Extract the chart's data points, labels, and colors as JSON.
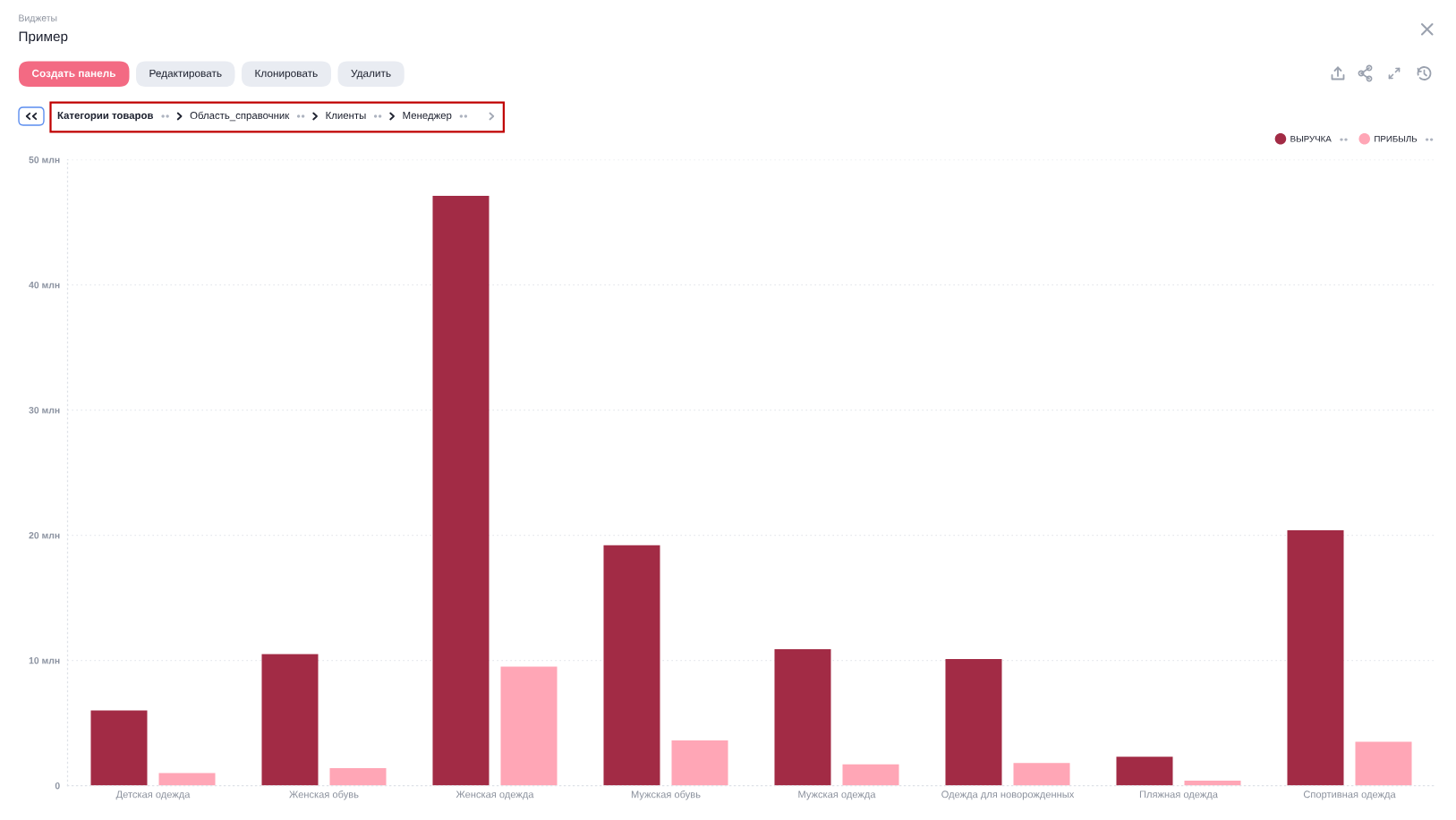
{
  "chart_data": {
    "type": "bar",
    "title": "Пример",
    "subtitle": "Виджеты",
    "categories": [
      "Детская одежда",
      "Женская обувь",
      "Женская одежда",
      "Мужская обувь",
      "Мужская одежда",
      "Одежда для новорожденных",
      "Пляжная одежда",
      "Спортивная одежда"
    ],
    "series": [
      {
        "name": "ВЫРУЧКА",
        "color": "#a22b45",
        "values": [
          6.0,
          10.5,
          47.1,
          19.2,
          10.9,
          10.1,
          2.3,
          20.4
        ]
      },
      {
        "name": "ПРИБЫЛЬ",
        "color": "#ffa6b6",
        "values": [
          1.0,
          1.4,
          9.5,
          3.6,
          1.7,
          1.8,
          0.4,
          3.5
        ]
      }
    ],
    "ylim": [
      0,
      50
    ],
    "yticks": [
      0,
      {
        "value": 10,
        "label": "10 млн"
      },
      {
        "value": 20,
        "label": "20 млн"
      },
      {
        "value": 30,
        "label": "30 млн"
      },
      {
        "value": 40,
        "label": "40 млн"
      },
      {
        "value": 50,
        "label": "50 млн"
      }
    ],
    "grid": "y",
    "legend": "top right",
    "annotations": [
      "Создать панель",
      "Редактировать",
      "Клонировать",
      "Удалить",
      "Категории товаров",
      "Область_справочник",
      "Клиенты",
      "Менеджер"
    ]
  }
}
